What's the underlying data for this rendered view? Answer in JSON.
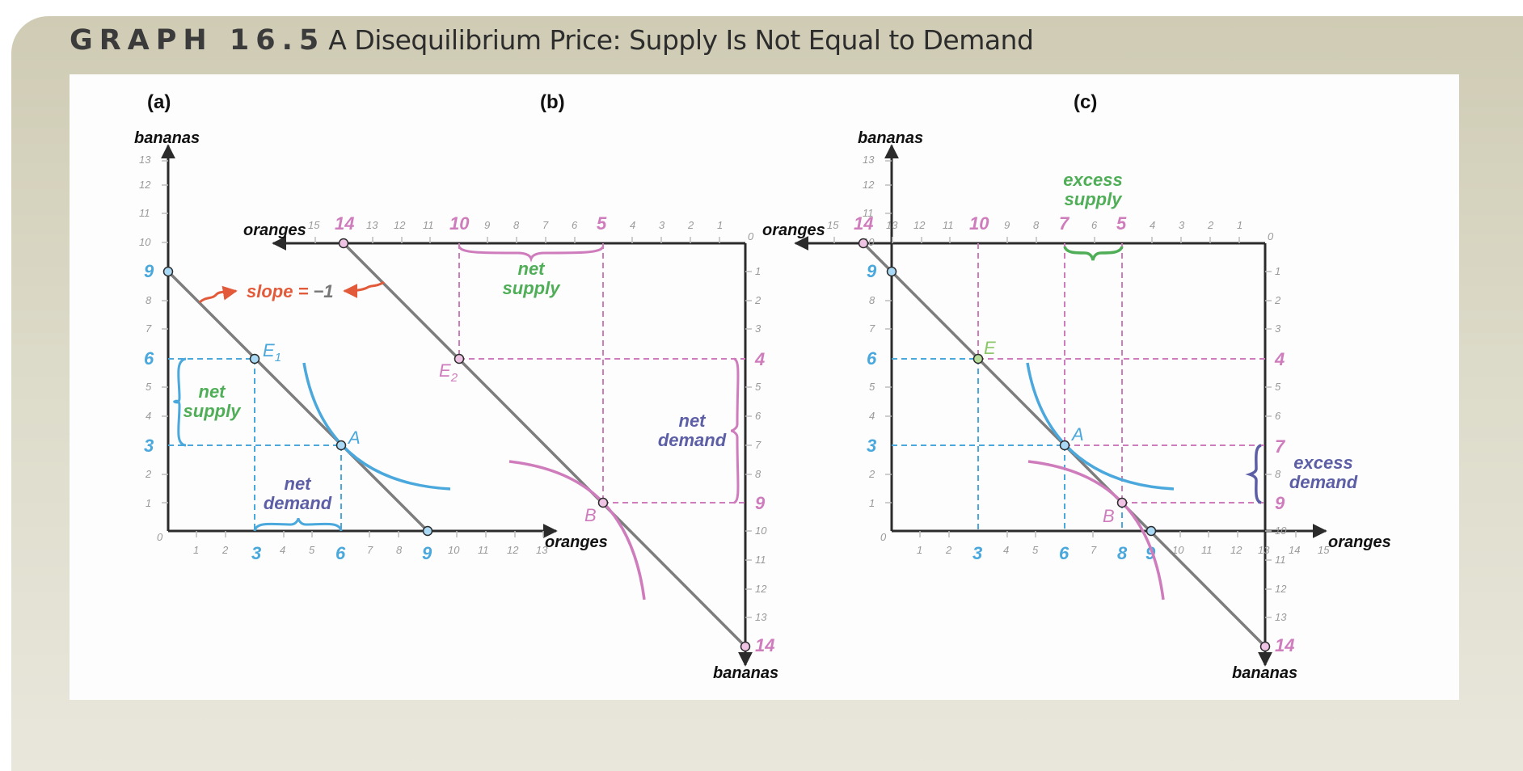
{
  "title": {
    "label": "GRAPH 16.5",
    "text": "A Disequilibrium Price: Supply Is Not Equal to Demand"
  },
  "panels": {
    "a": {
      "label": "(a)",
      "y_axis": "bananas",
      "x_axis": "oranges"
    },
    "b": {
      "label": "(b)",
      "x_axis": "oranges",
      "y_axis": "bananas"
    },
    "c": {
      "label": "(c)",
      "y_axis_left": "bananas",
      "x_axis_top": "oranges",
      "x_axis_bottom": "oranges",
      "y_axis_right": "bananas"
    }
  },
  "annotations": {
    "slope_label": "slope =",
    "slope_value": "−1",
    "net": "net",
    "supply": "supply",
    "demand": "demand",
    "excess": "excess",
    "point_A": "A",
    "point_B": "B",
    "point_E1": "E",
    "point_E1_sub": "1",
    "point_E2": "E",
    "point_E2_sub": "2",
    "point_E": "E"
  },
  "colors": {
    "blue": "#4aa8dc",
    "pink": "#cf7cbd",
    "green": "#4fae57",
    "purple": "#5c5ea6",
    "red": "#e35a3a",
    "line": "#7d7d7d",
    "axis": "#2b2b2b"
  },
  "chart_data": {
    "type": "diagram",
    "budget_line_slope": -1,
    "endowment_A": {
      "oranges": 6,
      "bananas": 3
    },
    "endowment_B": {
      "oranges": 5,
      "bananas": 9
    },
    "panel_a": {
      "y_ticks": [
        "13",
        "12",
        "11",
        "10",
        "9",
        "8",
        "7",
        "6",
        "5",
        "4",
        "3",
        "2",
        "1",
        "0"
      ],
      "x_ticks": [
        "1",
        "2",
        "3",
        "4",
        "5",
        "6",
        "7",
        "8",
        "9",
        "10",
        "11",
        "12",
        "13"
      ],
      "highlight_y": [
        "9",
        "6",
        "3"
      ],
      "highlight_x": [
        "3",
        "6",
        "9"
      ],
      "E1": {
        "oranges": 3,
        "bananas": 6
      },
      "A": {
        "oranges": 6,
        "bananas": 3
      },
      "net_supply_bananas": 3,
      "net_demand_oranges": 3
    },
    "panel_b": {
      "top_ticks": [
        "15",
        "14",
        "13",
        "12",
        "11",
        "10",
        "9",
        "8",
        "7",
        "6",
        "5",
        "4",
        "3",
        "2",
        "1",
        "0"
      ],
      "right_ticks": [
        "1",
        "2",
        "3",
        "4",
        "5",
        "6",
        "7",
        "8",
        "9",
        "10",
        "11",
        "12",
        "13",
        "14"
      ],
      "highlight_top": [
        "14",
        "10",
        "5"
      ],
      "highlight_right": [
        "4",
        "9",
        "14"
      ],
      "E2": {
        "oranges": 10,
        "bananas": 4
      },
      "B": {
        "oranges": 5,
        "bananas": 9
      },
      "net_supply_oranges": 5,
      "net_demand_bananas": 5
    },
    "panel_c": {
      "left_y_ticks": [
        "13",
        "12",
        "11",
        "10",
        "9",
        "8",
        "7",
        "6",
        "5",
        "4",
        "3",
        "2",
        "1",
        "0"
      ],
      "bottom_x_ticks": [
        "1",
        "2",
        "3",
        "4",
        "5",
        "6",
        "7",
        "8",
        "9",
        "10",
        "11",
        "12",
        "13",
        "14",
        "15"
      ],
      "top_ticks": [
        "15",
        "14",
        "13",
        "12",
        "11",
        "10",
        "9",
        "8",
        "7",
        "6",
        "5",
        "4",
        "3",
        "2",
        "1",
        "0"
      ],
      "right_ticks": [
        "1",
        "2",
        "3",
        "4",
        "5",
        "6",
        "7",
        "8",
        "9",
        "10",
        "11",
        "12",
        "13",
        "14"
      ],
      "highlight_left": [
        "9",
        "6",
        "3"
      ],
      "highlight_bottom": [
        "3",
        "6",
        "8",
        "9"
      ],
      "highlight_top": [
        "14",
        "10",
        "7",
        "5"
      ],
      "highlight_right": [
        "4",
        "7",
        "9",
        "14"
      ],
      "E": {
        "oranges": 3,
        "bananas": 6
      },
      "excess_supply_oranges": 2,
      "excess_demand_bananas": 2
    }
  }
}
